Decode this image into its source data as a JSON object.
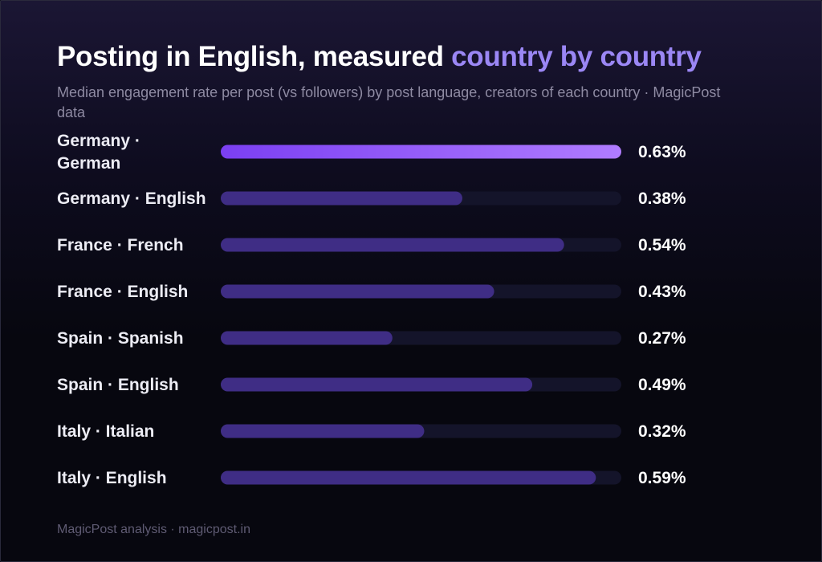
{
  "header": {
    "title_main": "Posting in English, measured ",
    "title_accent": "country by country",
    "subtitle": "Median engagement rate per post (vs followers) by post language, creators of each country · MagicPost data"
  },
  "footer": {
    "text": "MagicPost analysis · magicpost.in"
  },
  "colors": {
    "highlight_start": "#7b3ff2",
    "highlight_end": "#b07cff",
    "bar": "#3f2d85",
    "track": "#14142a",
    "accent_title": "#9b87f5"
  },
  "chart_data": {
    "type": "bar",
    "orientation": "horizontal",
    "categories": [
      "Germany · German",
      "Germany · English",
      "France · French",
      "France · English",
      "Spain · Spanish",
      "Spain · English",
      "Italy · Italian",
      "Italy · English"
    ],
    "category_lines": [
      [
        "Germany ·",
        "German"
      ],
      [
        "Germany · English"
      ],
      [
        "France · French"
      ],
      [
        "France · English"
      ],
      [
        "Spain · Spanish"
      ],
      [
        "Spain · English"
      ],
      [
        "Italy · Italian"
      ],
      [
        "Italy · English"
      ]
    ],
    "values": [
      0.63,
      0.38,
      0.54,
      0.43,
      0.27,
      0.49,
      0.32,
      0.59
    ],
    "value_labels": [
      "0.63%",
      "0.38%",
      "0.54%",
      "0.43%",
      "0.27%",
      "0.49%",
      "0.32%",
      "0.59%"
    ],
    "unit": "%",
    "xlim": [
      0,
      0.63
    ],
    "highlighted_index": 0,
    "grid": false,
    "legend": "none"
  }
}
